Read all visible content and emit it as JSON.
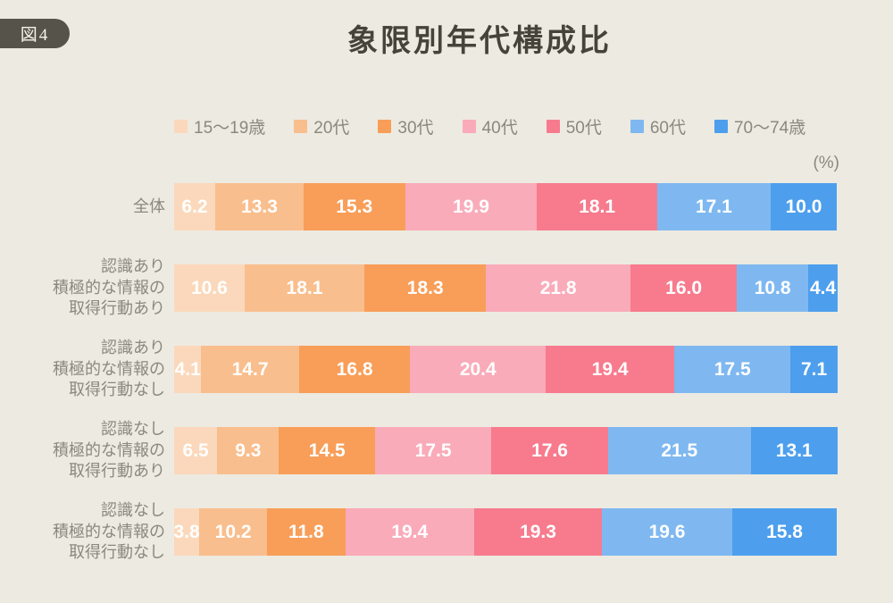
{
  "figure_badge": "図4",
  "title": "象限別年代構成比",
  "unit_label": "(%)",
  "colors": {
    "background": "#EDEAE1",
    "badge_background": "#56534A",
    "title_text": "#45443A",
    "label_text": "#8B897E",
    "value_text": "#FFFFFF"
  },
  "legend": [
    {
      "label": "15〜19歳",
      "color": "#FBD8BB"
    },
    {
      "label": "20代",
      "color": "#F9BE8D"
    },
    {
      "label": "30代",
      "color": "#F89E58"
    },
    {
      "label": "40代",
      "color": "#F9ABB9"
    },
    {
      "label": "50代",
      "color": "#F77B8D"
    },
    {
      "label": "60代",
      "color": "#7FB8F0"
    },
    {
      "label": "70〜74歳",
      "color": "#4D9FED"
    }
  ],
  "rows": [
    {
      "label_lines": [
        "全体"
      ],
      "display_values": [
        "6.2",
        "13.3",
        "15.3",
        "19.9",
        "18.1",
        "17.1",
        "10.0"
      ]
    },
    {
      "label_lines": [
        "認識あり",
        "積極的な情報の",
        "取得行動あり"
      ],
      "display_values": [
        "10.6",
        "18.1",
        "18.3",
        "21.8",
        "16.0",
        "10.8",
        "4.4"
      ]
    },
    {
      "label_lines": [
        "認識あり",
        "積極的な情報の",
        "取得行動なし"
      ],
      "display_values": [
        "4.1",
        "14.7",
        "16.8",
        "20.4",
        "19.4",
        "17.5",
        "7.1"
      ]
    },
    {
      "label_lines": [
        "認識なし",
        "積極的な情報の",
        "取得行動あり"
      ],
      "display_values": [
        "6.5",
        "9.3",
        "14.5",
        "17.5",
        "17.6",
        "21.5",
        "13.1"
      ]
    },
    {
      "label_lines": [
        "認識なし",
        "積極的な情報の",
        "取得行動なし"
      ],
      "display_values": [
        "3.8",
        "10.2",
        "11.8",
        "19.4",
        "19.3",
        "19.6",
        "15.8"
      ]
    }
  ],
  "chart_data": {
    "type": "bar",
    "orientation": "horizontal",
    "stacked": true,
    "title": "象限別年代構成比",
    "unit": "%",
    "xlim": [
      0,
      100
    ],
    "legend_position": "top",
    "categories": [
      "全体",
      "認識あり 積極的な情報の取得行動あり",
      "認識あり 積極的な情報の取得行動なし",
      "認識なし 積極的な情報の取得行動あり",
      "認識なし 積極的な情報の取得行動なし"
    ],
    "series": [
      {
        "name": "15〜19歳",
        "color": "#FBD8BB",
        "values": [
          6.2,
          10.6,
          4.1,
          6.5,
          3.8
        ]
      },
      {
        "name": "20代",
        "color": "#F9BE8D",
        "values": [
          13.3,
          18.1,
          14.7,
          9.3,
          10.2
        ]
      },
      {
        "name": "30代",
        "color": "#F89E58",
        "values": [
          15.3,
          18.3,
          16.8,
          14.5,
          11.8
        ]
      },
      {
        "name": "40代",
        "color": "#F9ABB9",
        "values": [
          19.9,
          21.8,
          20.4,
          17.5,
          19.4
        ]
      },
      {
        "name": "50代",
        "color": "#F77B8D",
        "values": [
          18.1,
          16.0,
          19.4,
          17.6,
          19.3
        ]
      },
      {
        "name": "60代",
        "color": "#7FB8F0",
        "values": [
          17.1,
          10.8,
          17.5,
          21.5,
          19.6
        ]
      },
      {
        "name": "70〜74歳",
        "color": "#4D9FED",
        "values": [
          10.0,
          4.4,
          7.1,
          13.1,
          15.8
        ]
      }
    ]
  }
}
